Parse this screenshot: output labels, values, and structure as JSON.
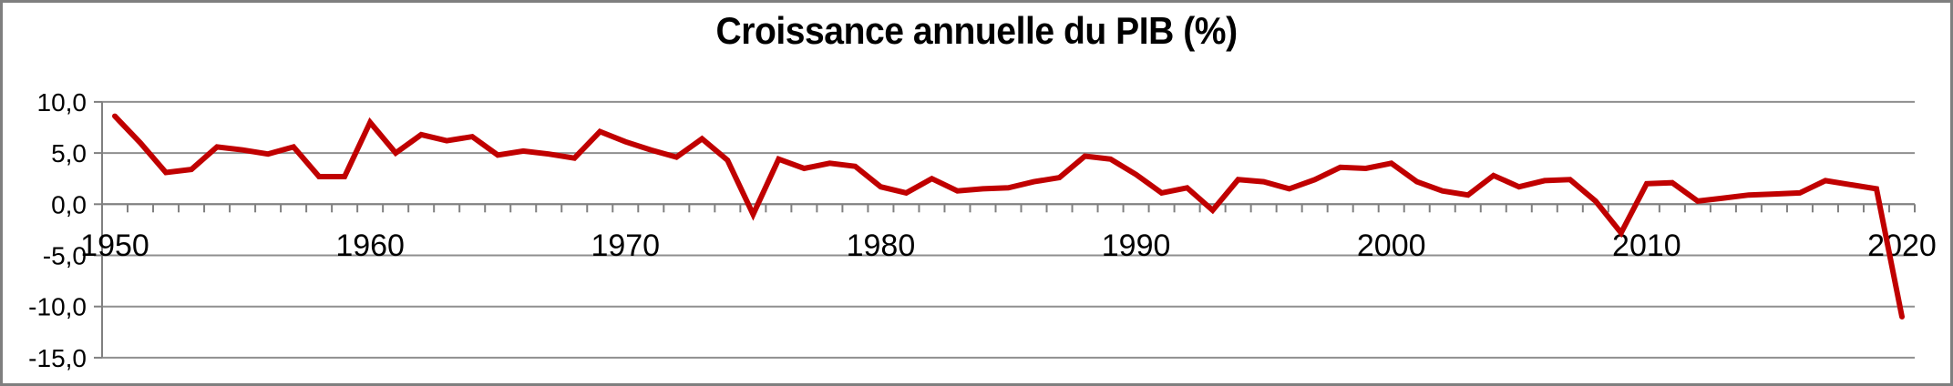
{
  "chart_data": {
    "type": "line",
    "title": "Croissance annuelle du PIB (%)",
    "xlabel": "",
    "ylabel": "",
    "ylim": [
      -15,
      10
    ],
    "xlim": [
      1949.5,
      2020.5
    ],
    "grid": "horizontal-only",
    "legend": "none",
    "decimal_separator": ",",
    "x": [
      1950,
      1951,
      1952,
      1953,
      1954,
      1955,
      1956,
      1957,
      1958,
      1959,
      1960,
      1961,
      1962,
      1963,
      1964,
      1965,
      1966,
      1967,
      1968,
      1969,
      1970,
      1971,
      1972,
      1973,
      1974,
      1975,
      1976,
      1977,
      1978,
      1979,
      1980,
      1981,
      1982,
      1983,
      1984,
      1985,
      1986,
      1987,
      1988,
      1989,
      1990,
      1991,
      1992,
      1993,
      1994,
      1995,
      1996,
      1997,
      1998,
      1999,
      2000,
      2001,
      2002,
      2003,
      2004,
      2005,
      2006,
      2007,
      2008,
      2009,
      2010,
      2011,
      2012,
      2013,
      2014,
      2015,
      2016,
      2017,
      2018,
      2019,
      2020
    ],
    "values": [
      8.6,
      6.0,
      3.1,
      3.4,
      5.6,
      5.3,
      4.9,
      5.6,
      2.7,
      2.7,
      8.0,
      5.0,
      6.8,
      6.2,
      6.6,
      4.8,
      5.2,
      4.9,
      4.5,
      7.1,
      6.1,
      5.3,
      4.6,
      6.4,
      4.3,
      -1.0,
      4.4,
      3.5,
      4.0,
      3.7,
      1.7,
      1.1,
      2.5,
      1.3,
      1.5,
      1.6,
      2.2,
      2.6,
      4.7,
      4.4,
      2.9,
      1.1,
      1.6,
      -0.6,
      2.4,
      2.2,
      1.5,
      2.4,
      3.6,
      3.5,
      4.0,
      2.2,
      1.3,
      0.9,
      2.8,
      1.7,
      2.3,
      2.4,
      0.3,
      -2.8,
      2.0,
      2.1,
      0.3,
      0.6,
      0.9,
      1.0,
      1.1,
      2.3,
      1.9,
      1.5,
      -11.0
    ],
    "yticks": [
      {
        "v": 10,
        "label": "10,0"
      },
      {
        "v": 5,
        "label": "5,0"
      },
      {
        "v": 0,
        "label": "0,0"
      },
      {
        "v": -5,
        "label": "-5,0"
      },
      {
        "v": -10,
        "label": "-10,0"
      },
      {
        "v": -15,
        "label": "-15,0"
      }
    ],
    "xticks": [
      {
        "v": 1950,
        "label": "1950"
      },
      {
        "v": 1960,
        "label": "1960"
      },
      {
        "v": 1970,
        "label": "1970"
      },
      {
        "v": 1980,
        "label": "1980"
      },
      {
        "v": 1990,
        "label": "1990"
      },
      {
        "v": 2000,
        "label": "2000"
      },
      {
        "v": 2010,
        "label": "2010"
      },
      {
        "v": 2020,
        "label": "2020"
      }
    ]
  },
  "colors": {
    "line": "#C00000",
    "gridline": "#8F8F8F",
    "axis": "#808080",
    "frame": "#7F7F7F",
    "background": "#FFFFFF",
    "text": "#000000"
  }
}
